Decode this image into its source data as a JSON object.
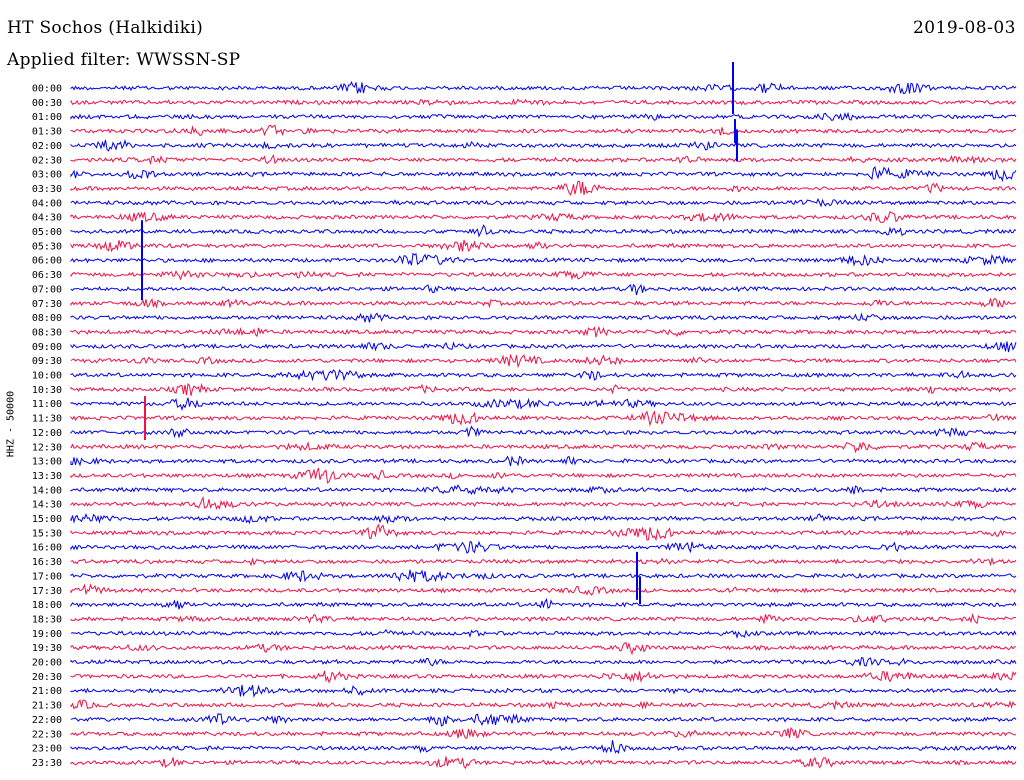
{
  "station": "HT Sochos (Halkidiki)",
  "date": "2019-08-03",
  "filter_label": "Applied filter: WWSSN-SP",
  "chart_data": {
    "type": "line",
    "title": "HT Sochos (Halkidiki)",
    "subtitle": "Applied filter: WWSSN-SP",
    "ylabel": "HHZ - 50000",
    "xlabel": "",
    "legend": "none",
    "grid": false,
    "row_colors": [
      "#0000ee",
      "#ee1144"
    ],
    "rows": [
      "00:00",
      "00:30",
      "01:00",
      "01:30",
      "02:00",
      "02:30",
      "03:00",
      "03:30",
      "04:00",
      "04:30",
      "05:00",
      "05:30",
      "06:00",
      "06:30",
      "07:00",
      "07:30",
      "08:00",
      "08:30",
      "09:00",
      "09:30",
      "10:00",
      "10:30",
      "11:00",
      "11:30",
      "12:00",
      "12:30",
      "13:00",
      "13:30",
      "14:00",
      "14:30",
      "15:00",
      "15:30",
      "16:00",
      "16:30",
      "17:00",
      "17:30",
      "18:00",
      "18:30",
      "19:00",
      "19:30",
      "20:00",
      "20:30",
      "21:00",
      "21:30",
      "22:00",
      "22:30",
      "23:00",
      "23:30"
    ]
  }
}
